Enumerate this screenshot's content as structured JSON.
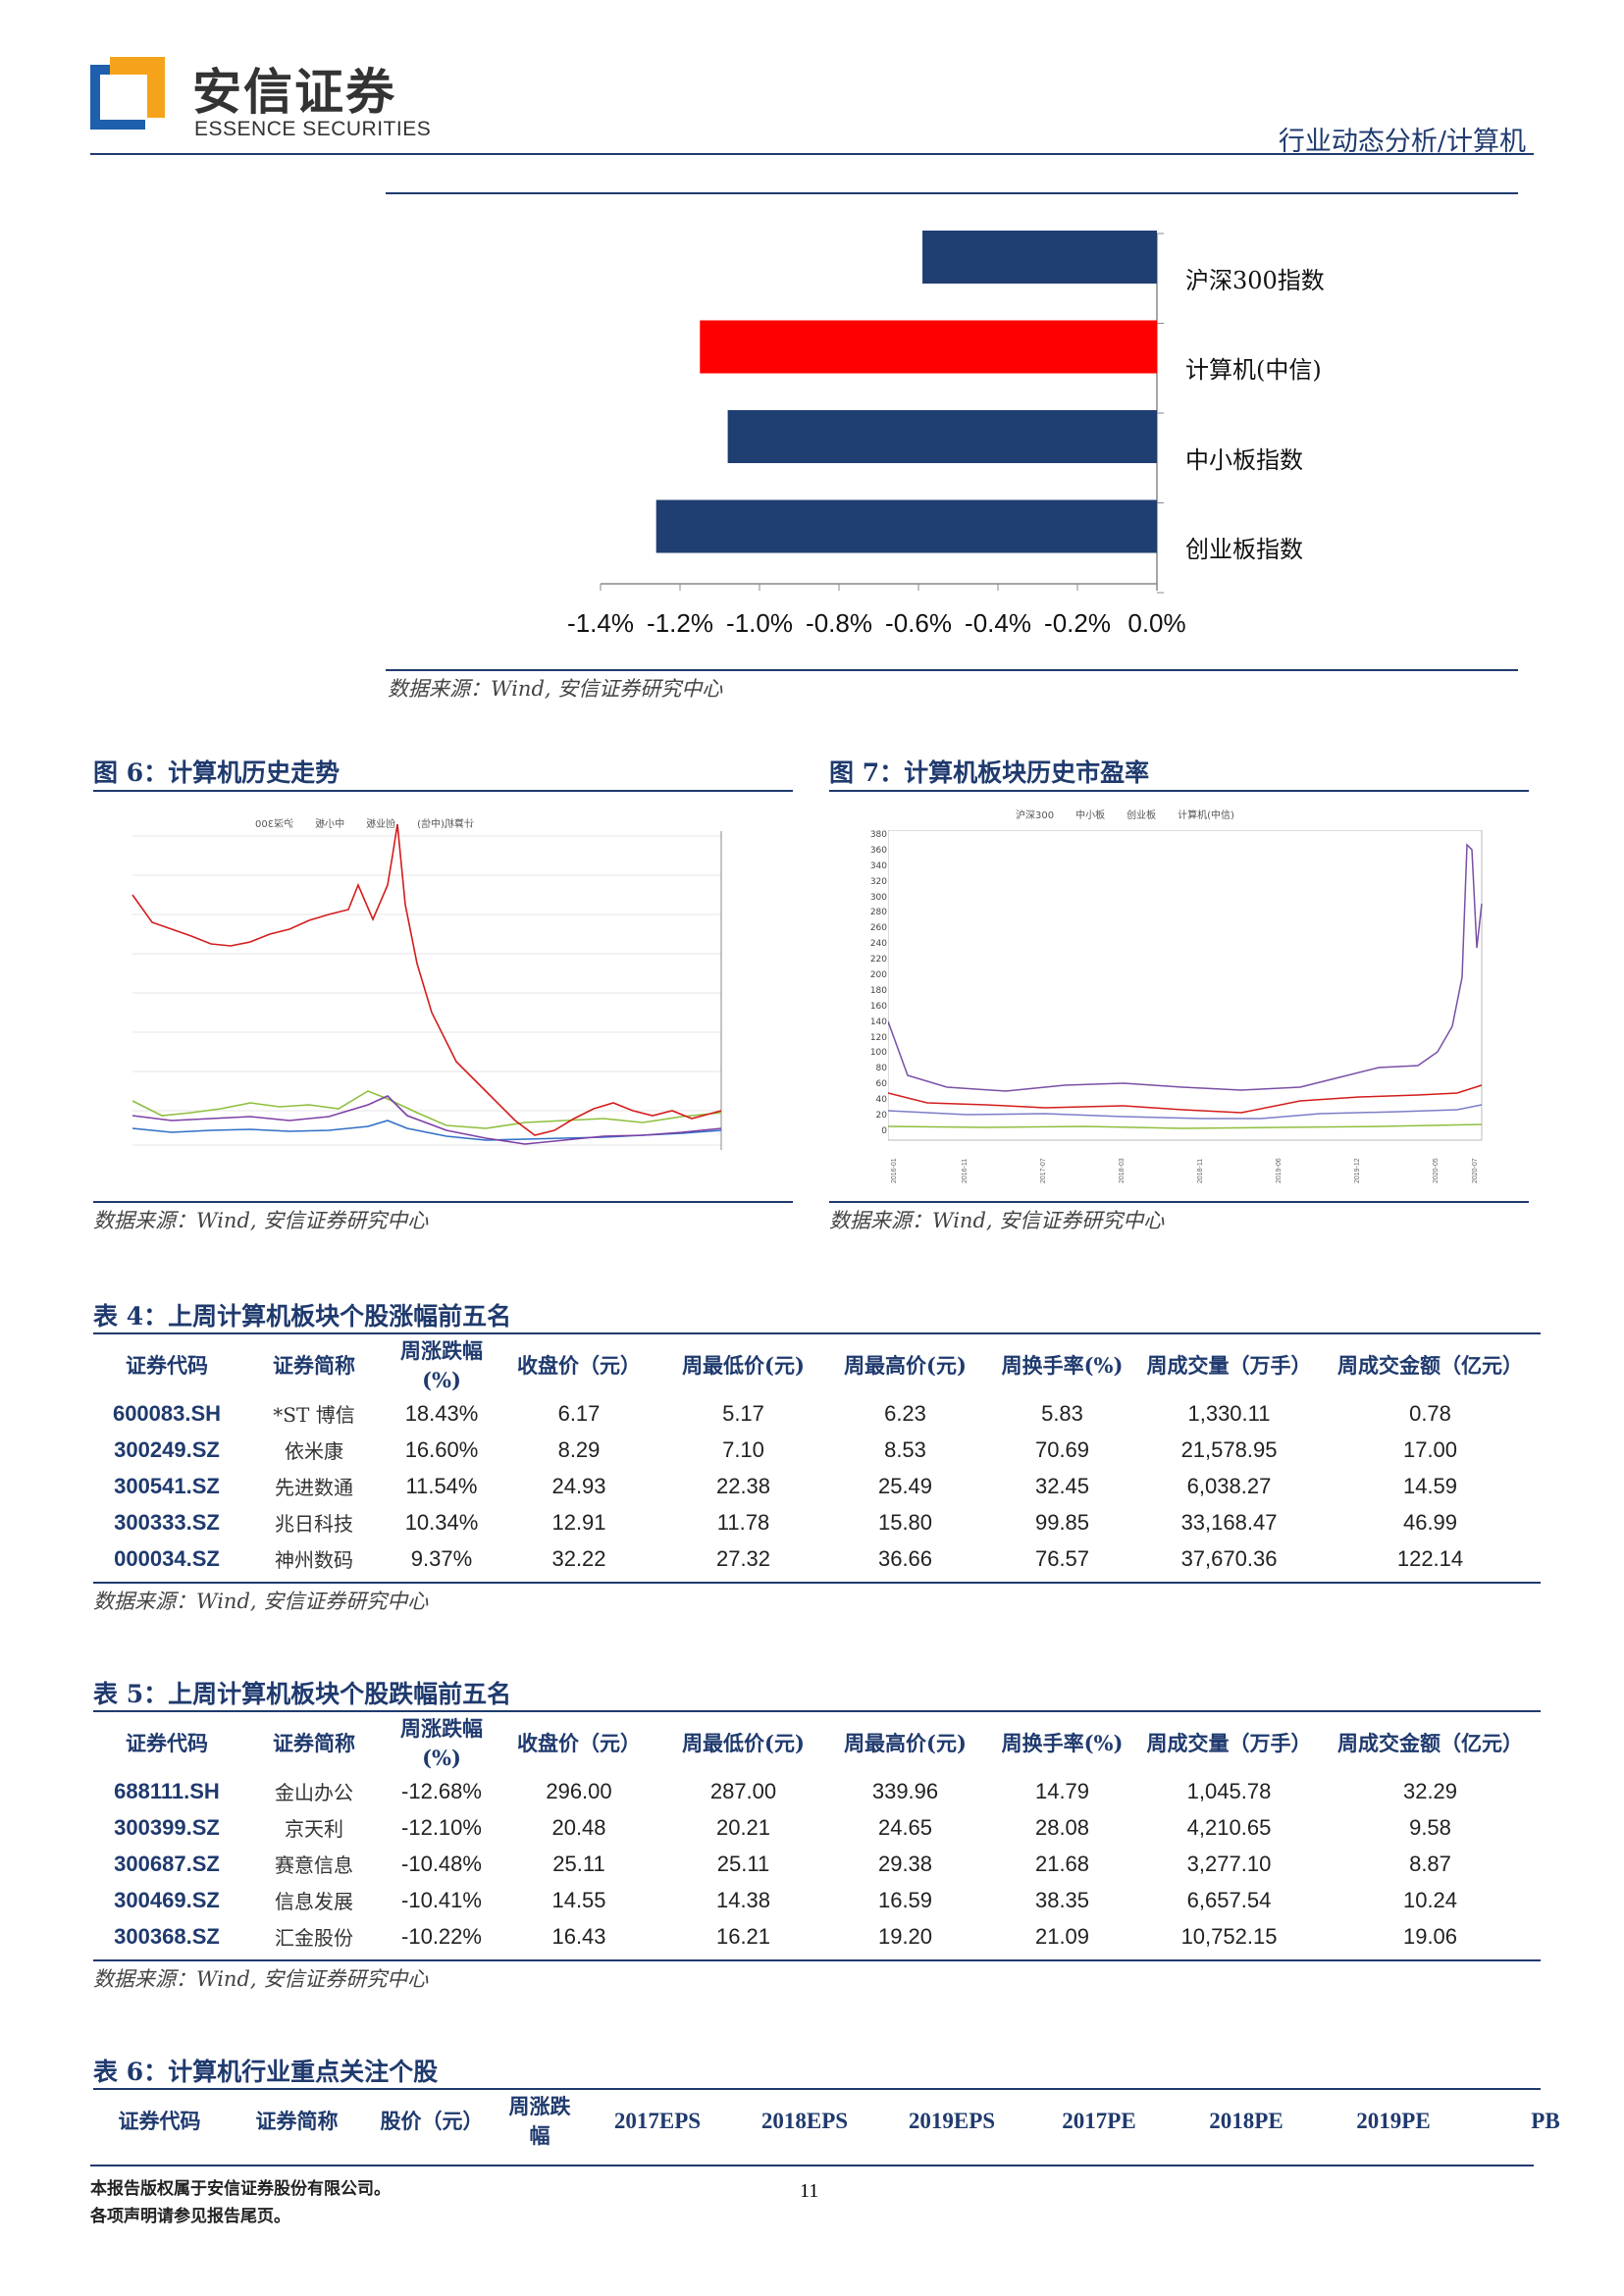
{
  "header": {
    "brand_cn": "安信证券",
    "brand_en": "ESSENCE SECURITIES",
    "report_type": "行业动态分析/计算机"
  },
  "bar_chart": {
    "chart_data": {
      "type": "bar",
      "orientation": "horizontal",
      "categories": [
        "沪深300指数",
        "计算机(中信)",
        "中小板指数",
        "创业板指数"
      ],
      "values": [
        -0.59,
        -1.15,
        -1.08,
        -1.26
      ],
      "colors": [
        "#1f3e72",
        "#ff0000",
        "#1f3e72",
        "#1f3e72"
      ],
      "xlim": [
        -1.4,
        0.0
      ],
      "x_ticks": [
        "-1.4%",
        "-1.2%",
        "-1.0%",
        "-0.8%",
        "-0.6%",
        "-0.4%",
        "-0.2%",
        "0.0%"
      ]
    },
    "source": "数据来源：Wind, 安信证券研究中心"
  },
  "fig6": {
    "title": "图 6：计算机历史走势",
    "legend": [
      "计算机(中信)",
      "创业板",
      "中小板",
      "沪深300"
    ],
    "source": "数据来源：Wind, 安信证券研究中心"
  },
  "fig7": {
    "title": "图 7：计算机板块历史市盈率",
    "legend": [
      "沪深300",
      "中小板",
      "创业板",
      "计算机(中信)"
    ],
    "y_ticks": [
      "380",
      "360",
      "340",
      "320",
      "300",
      "280",
      "260",
      "240",
      "220",
      "200",
      "180",
      "160",
      "140",
      "120",
      "100",
      "80",
      "60",
      "40",
      "20",
      "0"
    ],
    "source": "数据来源：Wind, 安信证券研究中心"
  },
  "table4": {
    "title": "表 4：上周计算机板块个股涨幅前五名",
    "headers": [
      "证券代码",
      "证券简称",
      "周涨跌幅(%)",
      "收盘价（元）",
      "周最低价(元)",
      "周最高价(元)",
      "周换手率(%)",
      "周成交量（万手）",
      "周成交金额（亿元）"
    ],
    "rows": [
      [
        "600083.SH",
        "*ST 博信",
        "18.43%",
        "6.17",
        "5.17",
        "6.23",
        "5.83",
        "1,330.11",
        "0.78"
      ],
      [
        "300249.SZ",
        "依米康",
        "16.60%",
        "8.29",
        "7.10",
        "8.53",
        "70.69",
        "21,578.95",
        "17.00"
      ],
      [
        "300541.SZ",
        "先进数通",
        "11.54%",
        "24.93",
        "22.38",
        "25.49",
        "32.45",
        "6,038.27",
        "14.59"
      ],
      [
        "300333.SZ",
        "兆日科技",
        "10.34%",
        "12.91",
        "11.78",
        "15.80",
        "99.85",
        "33,168.47",
        "46.99"
      ],
      [
        "000034.SZ",
        "神州数码",
        "9.37%",
        "32.22",
        "27.32",
        "36.66",
        "76.57",
        "37,670.36",
        "122.14"
      ]
    ],
    "source": "数据来源：Wind, 安信证券研究中心"
  },
  "table5": {
    "title": "表 5：上周计算机板块个股跌幅前五名",
    "headers": [
      "证券代码",
      "证券简称",
      "周涨跌幅(%)",
      "收盘价（元）",
      "周最低价(元)",
      "周最高价(元)",
      "周换手率(%)",
      "周成交量（万手）",
      "周成交金额（亿元）"
    ],
    "rows": [
      [
        "688111.SH",
        "金山办公",
        "-12.68%",
        "296.00",
        "287.00",
        "339.96",
        "14.79",
        "1,045.78",
        "32.29"
      ],
      [
        "300399.SZ",
        "京天利",
        "-12.10%",
        "20.48",
        "20.21",
        "24.65",
        "28.08",
        "4,210.65",
        "9.58"
      ],
      [
        "300687.SZ",
        "赛意信息",
        "-10.48%",
        "25.11",
        "25.11",
        "29.38",
        "21.68",
        "3,277.10",
        "8.87"
      ],
      [
        "300469.SZ",
        "信息发展",
        "-10.41%",
        "14.55",
        "14.38",
        "16.59",
        "38.35",
        "6,657.54",
        "10.24"
      ],
      [
        "300368.SZ",
        "汇金股份",
        "-10.22%",
        "16.43",
        "16.21",
        "19.20",
        "21.09",
        "10,752.15",
        "19.06"
      ]
    ],
    "source": "数据来源：Wind, 安信证券研究中心"
  },
  "table6": {
    "title": "表 6：计算机行业重点关注个股",
    "headers": [
      "证券代码",
      "证券简称",
      "股价（元）",
      "周涨跌幅",
      "2017EPS",
      "2018EPS",
      "2019EPS",
      "2017PE",
      "2018PE",
      "2019PE",
      "PB"
    ]
  },
  "footer": {
    "line1": "本报告版权属于安信证券股份有限公司。",
    "line2": "各项声明请参见报告尾页。",
    "page_number": "11"
  }
}
